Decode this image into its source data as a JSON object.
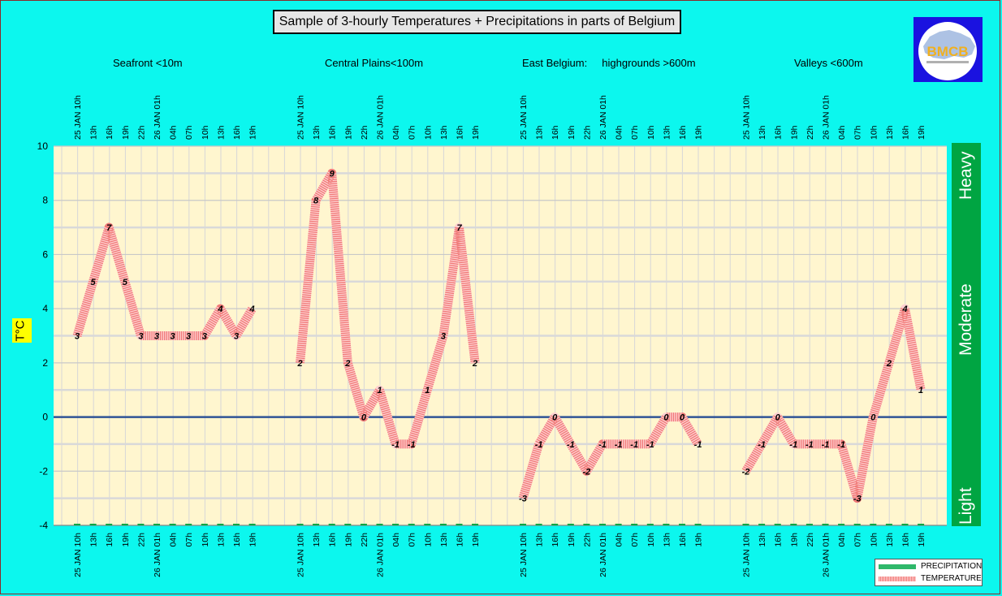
{
  "title": "Sample of 3-hourly Temperatures + Precipitations in parts of Belgium",
  "regions": [
    {
      "label": "Seafront <10m"
    },
    {
      "label": "Central Plains<100m"
    },
    {
      "label": "East Belgium:     highgrounds >600m"
    },
    {
      "label": "Valleys <600m"
    }
  ],
  "y_axis_label": "T°C",
  "precipitation_levels": [
    "Heavy",
    "Moderate",
    "Light"
  ],
  "legend": {
    "precipitation": "PRECIPITATION",
    "temperature": "TEMPERATURE"
  },
  "logo_text": "BMCB",
  "colors": {
    "background": "#0cf7ee",
    "plot_bg": "#fff6cf",
    "temperature": "#f07a78",
    "precipitation": "#00a542",
    "zero_line": "#2f5496",
    "logo_bg": "#1a12e0"
  },
  "chart_data": {
    "type": "line",
    "ylim": [
      -4,
      10
    ],
    "yticks": [
      -4,
      -2,
      0,
      2,
      4,
      6,
      8,
      10
    ],
    "grid": true,
    "legend_position": "bottom-right",
    "x_tick_labels": [
      "25 JAN 10h",
      "13h",
      "16h",
      "19h",
      "22h",
      "26 JAN 01h",
      "04h",
      "07h",
      "10h",
      "13h",
      "16h",
      "19h"
    ],
    "series": [
      {
        "name": "Seafront <10m",
        "values": [
          3,
          5,
          7,
          5,
          3,
          3,
          3,
          3,
          3,
          4,
          3,
          4
        ]
      },
      {
        "name": "Central Plains<100m",
        "values": [
          2,
          8,
          9,
          2,
          0,
          1,
          -1,
          -1,
          1,
          3,
          7,
          2
        ]
      },
      {
        "name": "East Belgium: highgrounds >600m",
        "values": [
          -3,
          -1,
          0,
          -1,
          -2,
          -1,
          -1,
          -1,
          -1,
          0,
          0,
          -1
        ]
      },
      {
        "name": "Valleys <600m",
        "values": [
          -2,
          -1,
          0,
          -1,
          -1,
          -1,
          -1,
          -3,
          0,
          2,
          4,
          1
        ]
      }
    ]
  }
}
